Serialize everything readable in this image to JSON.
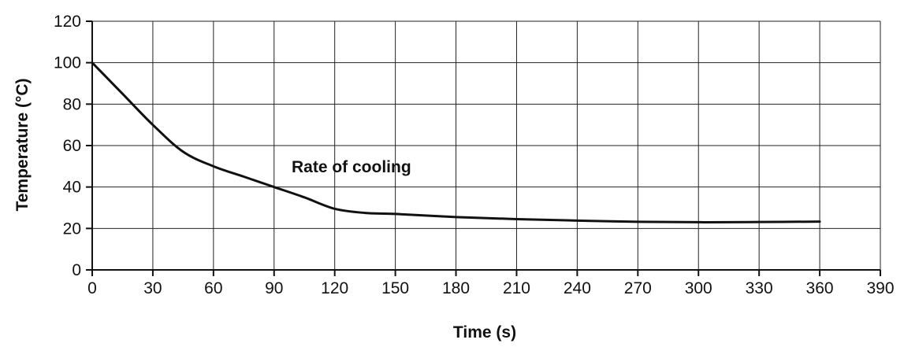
{
  "chart_data": {
    "type": "line",
    "xlabel": "Time (s)",
    "ylabel": "Temperature (°C)",
    "xlim": [
      0,
      390
    ],
    "ylim": [
      0,
      120
    ],
    "x_ticks": [
      0,
      30,
      60,
      90,
      120,
      150,
      180,
      210,
      240,
      270,
      300,
      330,
      360,
      390
    ],
    "y_ticks": [
      0,
      20,
      40,
      60,
      80,
      100,
      120
    ],
    "grid": true,
    "annotation": "Rate of cooling",
    "series": [
      {
        "x": [
          0,
          15,
          30,
          45,
          60,
          75,
          90,
          105,
          120,
          135,
          150,
          180,
          210,
          240,
          270,
          300,
          330,
          360
        ],
        "y": [
          100,
          85,
          70,
          57,
          50,
          45,
          40,
          35,
          29.5,
          27.5,
          27,
          25.5,
          24.5,
          23.8,
          23.2,
          23,
          23.1,
          23.3
        ],
        "color": "#111111"
      }
    ]
  }
}
